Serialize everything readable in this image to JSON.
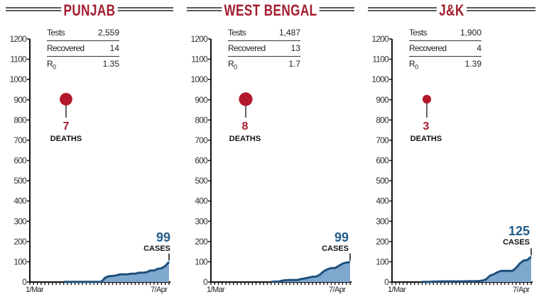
{
  "chart_data": [
    {
      "type": "area",
      "title": "PUNJAB",
      "stats": {
        "tests_label": "Tests",
        "tests": "2,559",
        "recovered_label": "Recovered",
        "recovered": "14",
        "r0_label": "R",
        "r0_sub": "0",
        "r0": "1.35"
      },
      "deaths": "7",
      "deaths_label": "DEATHS",
      "cases": "99",
      "cases_label": "CASES",
      "x_start_label": "1/Mar",
      "x_end_label": "7/Apr",
      "ylim": [
        0,
        1200
      ],
      "yticks": [
        0,
        100,
        200,
        300,
        400,
        500,
        600,
        700,
        800,
        900,
        1000,
        1100,
        1200
      ],
      "values": [
        null,
        null,
        null,
        null,
        null,
        null,
        null,
        null,
        null,
        1,
        1,
        1,
        1,
        1,
        1,
        1,
        1,
        1,
        1,
        1,
        21,
        29,
        30,
        33,
        38,
        38,
        38,
        41,
        41,
        46,
        46,
        48,
        57,
        57,
        65,
        68,
        79,
        99
      ]
    },
    {
      "type": "area",
      "title": "WEST BENGAL",
      "stats": {
        "tests_label": "Tests",
        "tests": "1,487",
        "recovered_label": "Recovered",
        "recovered": "13",
        "r0_label": "R",
        "r0_sub": "0",
        "r0": "1.7"
      },
      "deaths": "8",
      "deaths_label": "DEATHS",
      "cases": "99",
      "cases_label": "CASES",
      "x_start_label": "1/Mar",
      "x_end_label": "7/Apr",
      "ylim": [
        0,
        1200
      ],
      "yticks": [
        0,
        100,
        200,
        300,
        400,
        500,
        600,
        700,
        800,
        900,
        1000,
        1100,
        1200
      ],
      "values": [
        null,
        null,
        null,
        null,
        null,
        null,
        null,
        null,
        null,
        null,
        null,
        null,
        null,
        null,
        null,
        null,
        1,
        2,
        2,
        7,
        9,
        10,
        10,
        10,
        15,
        18,
        22,
        26,
        27,
        37,
        53,
        63,
        69,
        69,
        80,
        91,
        96,
        99
      ]
    },
    {
      "type": "area",
      "title": "J&K",
      "stats": {
        "tests_label": "Tests",
        "tests": "1,900",
        "recovered_label": "Recovered",
        "recovered": "4",
        "r0_label": "R",
        "r0_sub": "0",
        "r0": "1.39"
      },
      "deaths": "3",
      "deaths_label": "DEATHS",
      "cases": "125",
      "cases_label": "CASES",
      "x_start_label": "1/Mar",
      "x_end_label": "7/Apr",
      "ylim": [
        0,
        1200
      ],
      "yticks": [
        0,
        100,
        200,
        300,
        400,
        500,
        600,
        700,
        800,
        900,
        1000,
        1100,
        1200
      ],
      "values": [
        null,
        null,
        null,
        null,
        null,
        null,
        null,
        null,
        1,
        1,
        1,
        2,
        2,
        3,
        3,
        3,
        3,
        3,
        3,
        3,
        4,
        4,
        4,
        5,
        7,
        13,
        31,
        38,
        48,
        55,
        55,
        55,
        55,
        70,
        92,
        106,
        109,
        125
      ]
    }
  ],
  "colors": {
    "title": "#a31d2e",
    "death_dot": "#b3182c",
    "area": "#7fa8cf",
    "line": "#1d4f7c"
  }
}
